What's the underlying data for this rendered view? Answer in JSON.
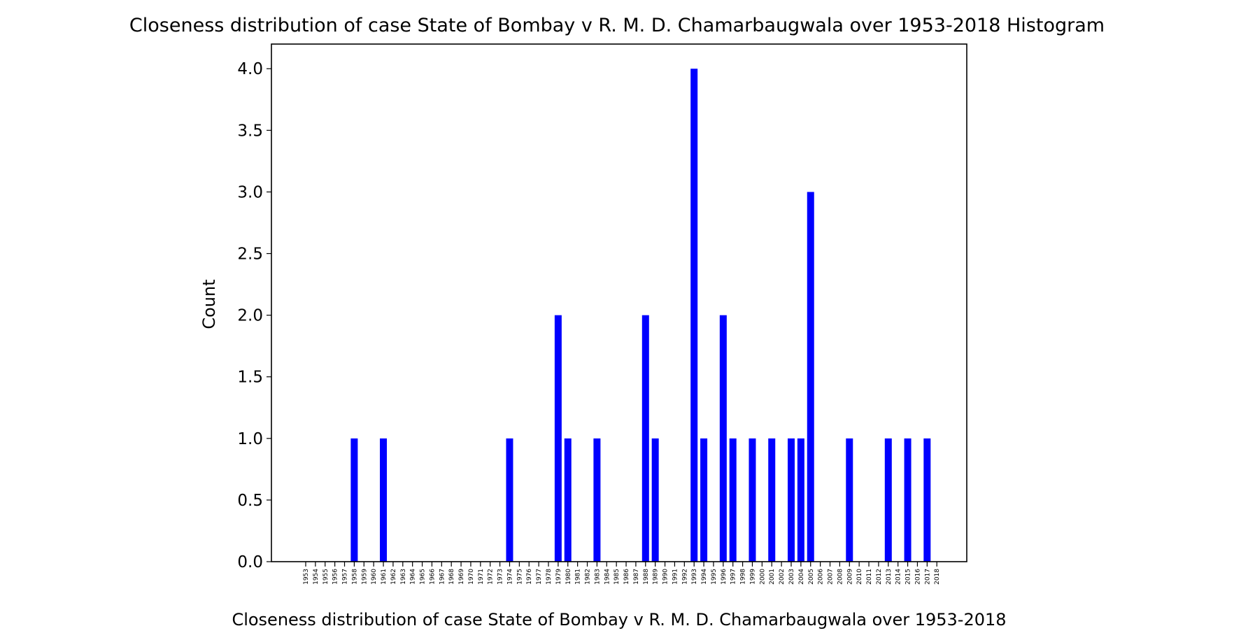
{
  "chart_data": {
    "type": "bar",
    "title": "Closeness distribution of case State of Bombay v R. M. D. Chamarbaugwala over 1953-2018 Histogram",
    "xlabel": "Closeness distribution of case State of Bombay v R. M. D. Chamarbaugwala over 1953-2018",
    "ylabel": "Count",
    "categories": [
      "1953",
      "1954",
      "1955",
      "1956",
      "1957",
      "1958",
      "1959",
      "1960",
      "1961",
      "1962",
      "1963",
      "1964",
      "1965",
      "1966",
      "1967",
      "1968",
      "1969",
      "1970",
      "1971",
      "1972",
      "1973",
      "1974",
      "1975",
      "1976",
      "1977",
      "1978",
      "1979",
      "1980",
      "1981",
      "1982",
      "1983",
      "1984",
      "1985",
      "1986",
      "1987",
      "1988",
      "1989",
      "1990",
      "1991",
      "1992",
      "1993",
      "1994",
      "1995",
      "1996",
      "1997",
      "1998",
      "1999",
      "2000",
      "2001",
      "2002",
      "2003",
      "2004",
      "2005",
      "2006",
      "2007",
      "2008",
      "2009",
      "2010",
      "2011",
      "2012",
      "2013",
      "2014",
      "2015",
      "2016",
      "2017",
      "2018"
    ],
    "values": [
      0,
      0,
      0,
      0,
      0,
      1,
      0,
      0,
      1,
      0,
      0,
      0,
      0,
      0,
      0,
      0,
      0,
      0,
      0,
      0,
      0,
      1,
      0,
      0,
      0,
      0,
      2,
      1,
      0,
      0,
      1,
      0,
      0,
      0,
      0,
      2,
      1,
      0,
      0,
      0,
      4,
      1,
      0,
      2,
      1,
      0,
      1,
      0,
      1,
      0,
      1,
      1,
      3,
      0,
      0,
      0,
      1,
      0,
      0,
      0,
      1,
      0,
      1,
      0,
      1,
      0
    ],
    "ylim": [
      0,
      4.2
    ],
    "yticks": [
      "0.0",
      "0.5",
      "1.0",
      "1.5",
      "2.0",
      "2.5",
      "3.0",
      "3.5",
      "4.0"
    ],
    "bar_color": "#0000ff",
    "grid": false,
    "legend": "none"
  }
}
